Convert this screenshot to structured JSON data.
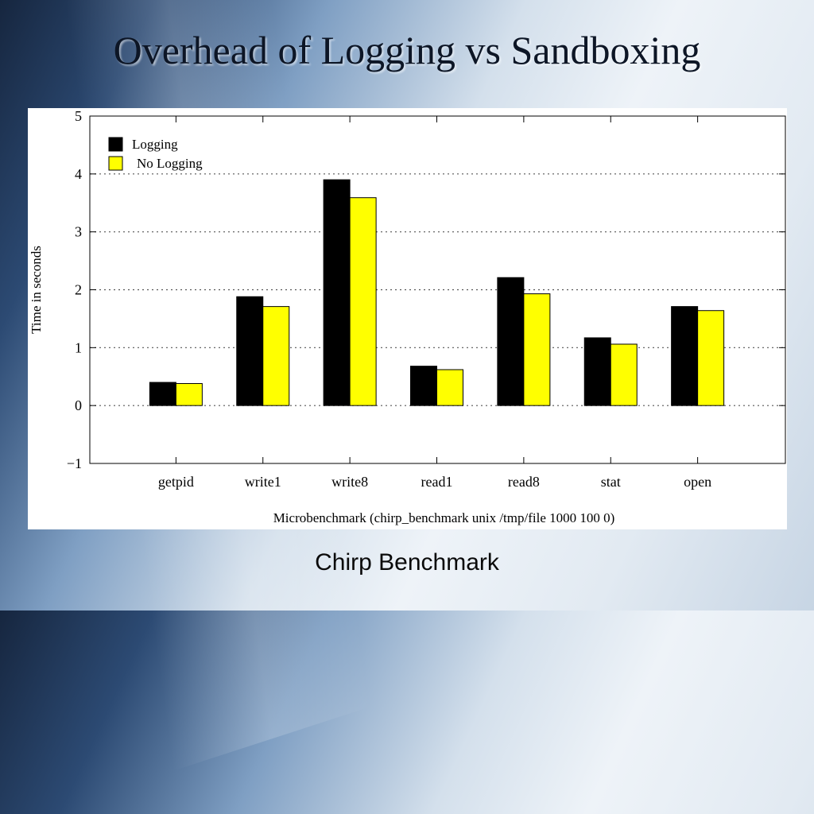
{
  "slide": {
    "title": "Overhead of Logging vs Sandboxing",
    "caption": "Chirp Benchmark"
  },
  "chart_data": {
    "type": "bar",
    "categories": [
      "getpid",
      "write1",
      "write8",
      "read1",
      "read8",
      "stat",
      "open"
    ],
    "series": [
      {
        "name": "Logging",
        "color": "#000000",
        "values": [
          0.4,
          1.88,
          3.9,
          0.68,
          2.21,
          1.17,
          1.71
        ]
      },
      {
        "name": "No Logging",
        "color": "#ffff00",
        "values": [
          0.38,
          1.71,
          3.59,
          0.62,
          1.93,
          1.06,
          1.64
        ]
      }
    ],
    "xlabel": "Microbenchmark (chirp_benchmark unix /tmp/file 1000 100 0)",
    "ylabel": "Time in seconds",
    "ylim": [
      -1,
      5
    ],
    "yticks": [
      -1,
      0,
      1,
      2,
      3,
      4,
      5
    ],
    "ytick_labels": [
      "−1",
      "0",
      "1",
      "2",
      "3",
      "4",
      "5"
    ],
    "grid": "horizontal dotted",
    "legend_position": "top-left"
  }
}
